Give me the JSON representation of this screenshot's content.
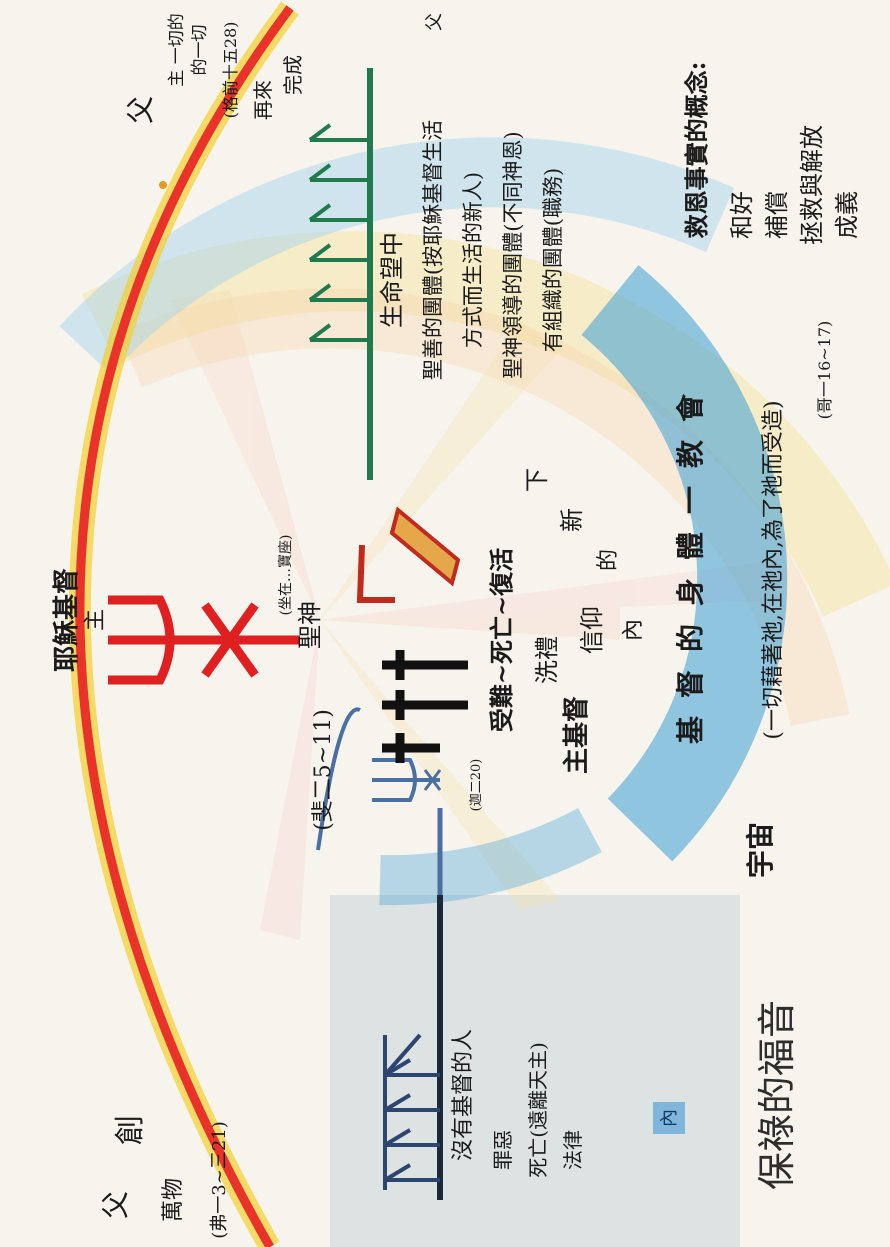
{
  "title": "保祿的福音",
  "father_labels": {
    "top": "父",
    "center": "父",
    "right": "父"
  },
  "creation": {
    "creation_label": "創",
    "wan_wu_label": "萬物",
    "creation_ref": "(弗一3~三21)"
  },
  "christ": {
    "name": "耶穌基督",
    "lord": "主",
    "sitting": "(坐在…寶座)"
  },
  "top_right_note": {
    "line1": "主 一切的",
    "line2": "的一切",
    "ref": "(格前十五28)",
    "coming": "再來",
    "completion": "完成"
  },
  "spirit": "聖神",
  "center_texts": {
    "humility": "(斐二5~11)",
    "ref_small": "(迦二20)",
    "death_resurrection": "受難~死亡~復活",
    "baptism": "洗禮",
    "faith": "信仰",
    "in": "內",
    "lord_christ": "主基督",
    "of": "的",
    "new": "新",
    "below": "下"
  },
  "arc_texts": {
    "body_of_christ": "基督的身體一教會",
    "universe": "宇宙",
    "all_things": "(一切藉著祂,在祂內,為了祂而受造)",
    "col_ref": "(哥一16~17)"
  },
  "left_group": {
    "label": "沒有基督的人",
    "sin": "罪惡",
    "death": "死亡(遠離天主)",
    "law": "法律",
    "legend": "內"
  },
  "right_group": {
    "line1": "生命望中",
    "line2": "聖善的團體(按耶穌基督生活",
    "line3": "方式而生活的新人)",
    "line4": "聖神領導的團體(不同神恩)",
    "line5": "有組織的團體(職務)"
  },
  "concept": {
    "title": "救恩事實的概念:",
    "items": [
      "和好",
      "補償",
      "拯救與解放",
      "成義"
    ]
  },
  "colors": {
    "arc_outer": "#e8322a",
    "arc_yellow": "#f3cf2c",
    "blue_band": "#3d9ed6",
    "green_line": "#1f7a4e",
    "dark_line": "#243042",
    "symbol_red": "#e02020",
    "text_dark": "#1b1b1b"
  }
}
